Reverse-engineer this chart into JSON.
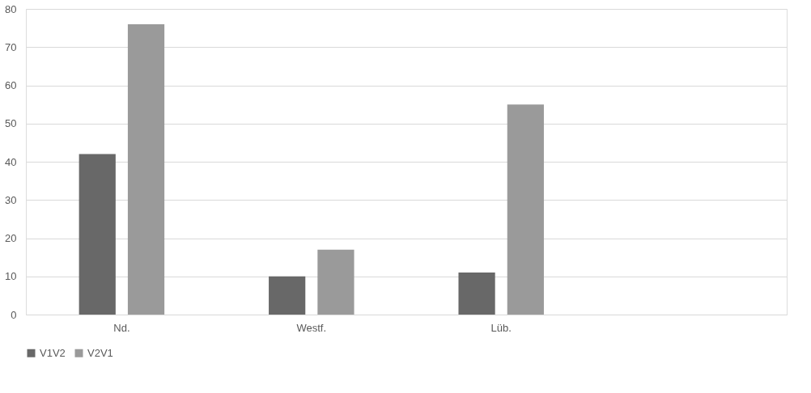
{
  "chart_data": {
    "type": "bar",
    "categories": [
      "Nd.",
      "Westf.",
      "Lüb.",
      null
    ],
    "series": [
      {
        "name": "V1V2",
        "color": "#686868",
        "values": [
          42,
          10,
          11,
          null
        ]
      },
      {
        "name": "V2V1",
        "color": "#9a9a9a",
        "values": [
          76,
          17,
          55,
          null
        ]
      }
    ],
    "ylim": [
      0,
      80
    ],
    "yticks": [
      0,
      10,
      20,
      30,
      40,
      50,
      60,
      70,
      80
    ],
    "grid": "y",
    "legend": "bottom"
  }
}
